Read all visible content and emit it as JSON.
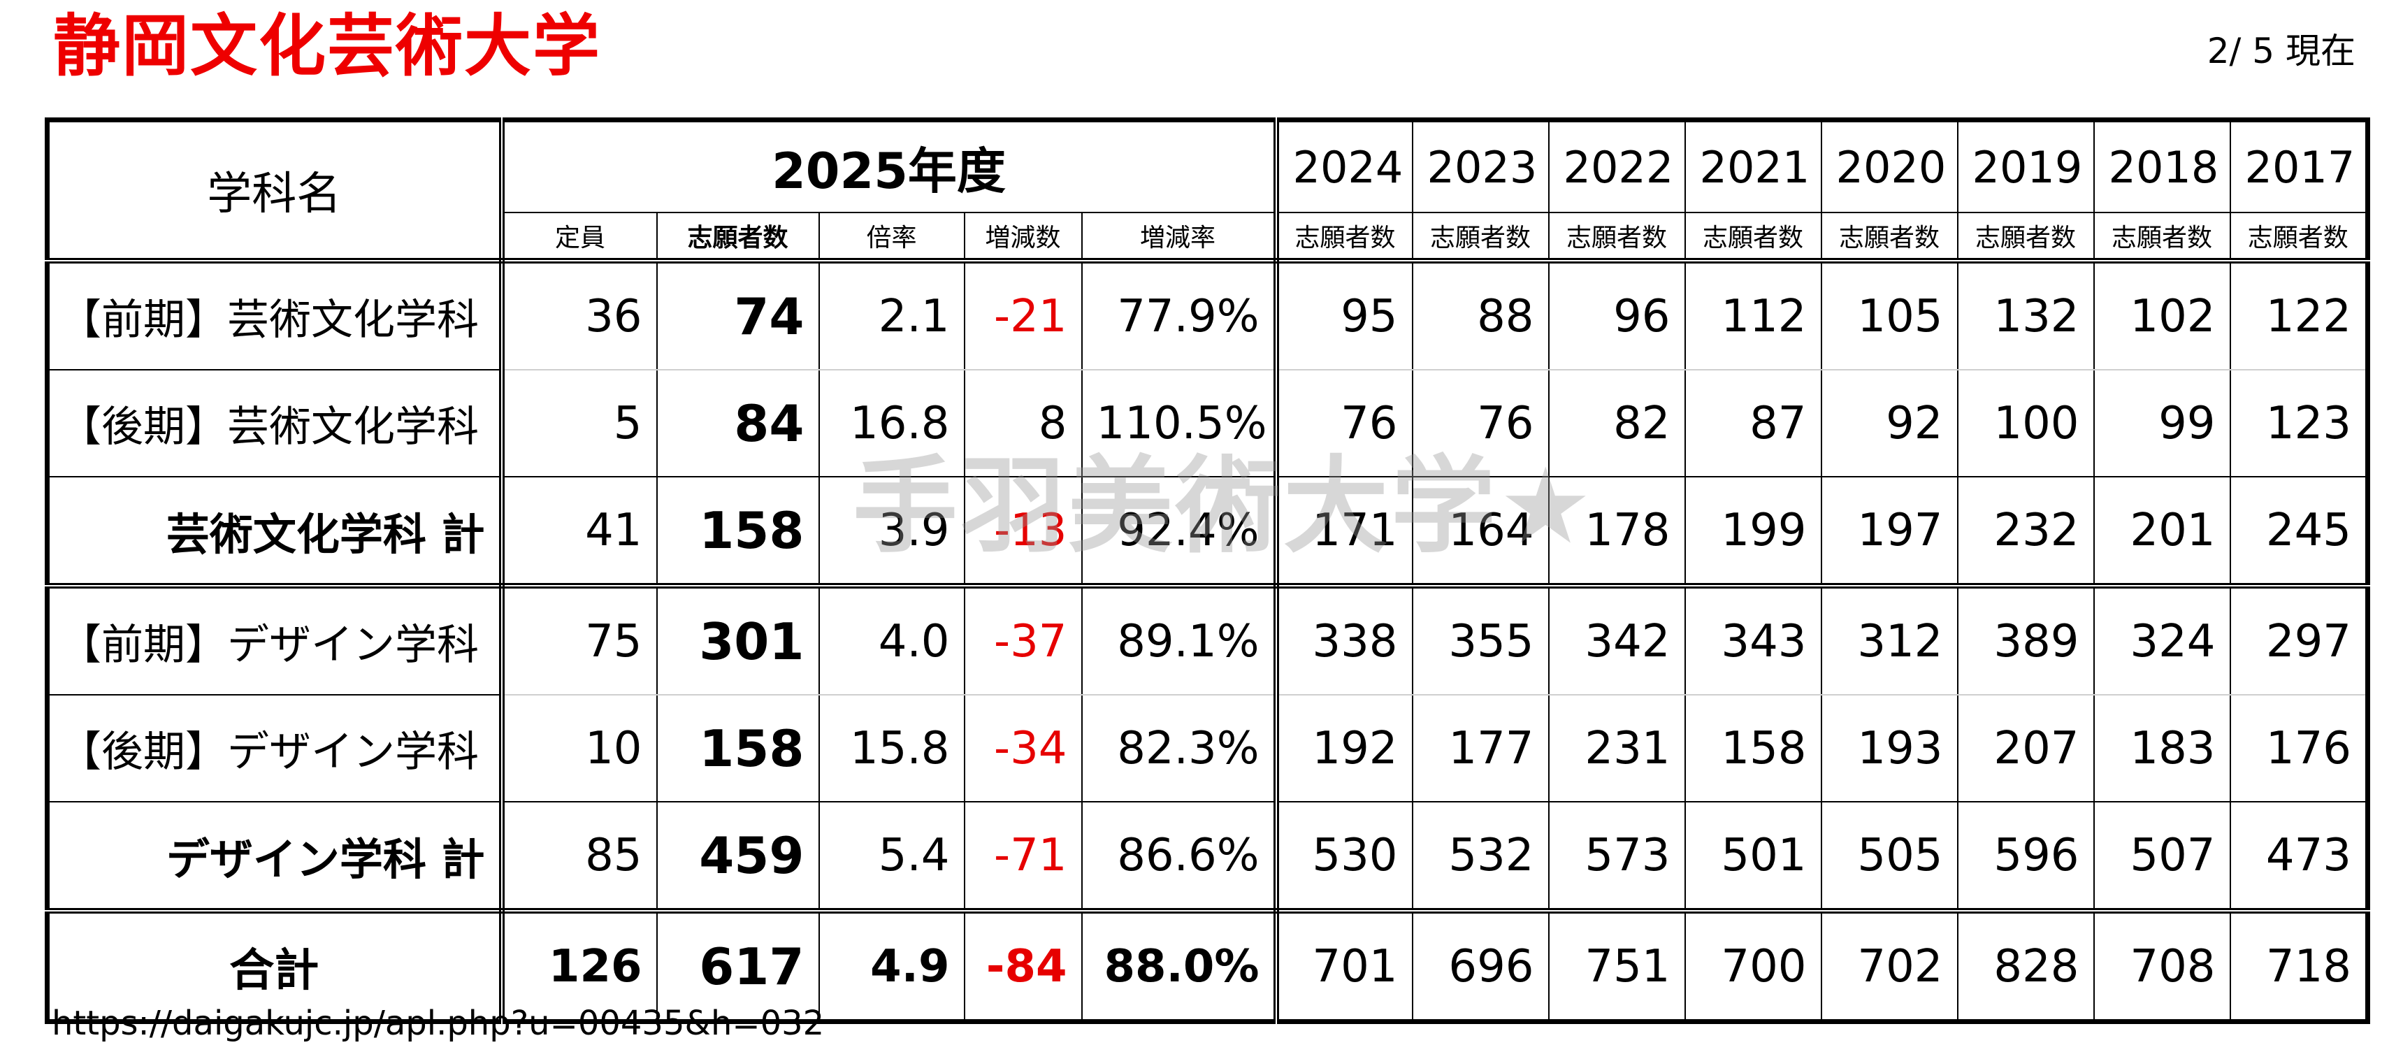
{
  "title": "静岡文化芸術大学",
  "as_of": "2/ 5 現在",
  "watermark": "手羽美術大学★",
  "footer_url": "https://daigakujc.jp/apl.php?u=00435&h=032",
  "header": {
    "dept_label": "学科名",
    "current_year": "2025年度",
    "sub_labels": [
      "定員",
      "志願者数",
      "倍率",
      "増減数",
      "増減率"
    ],
    "years": [
      "2024",
      "2023",
      "2022",
      "2021",
      "2020",
      "2019",
      "2018",
      "2017"
    ],
    "year_sub": "志願者数"
  },
  "rows": [
    {
      "name": "【前期】芸術文化学科",
      "quota": "36",
      "applicants": "74",
      "ratio": "2.1",
      "change": "-21",
      "rate": "77.9%",
      "history": [
        "95",
        "88",
        "96",
        "112",
        "105",
        "132",
        "102",
        "122"
      ]
    },
    {
      "name": "【後期】芸術文化学科",
      "quota": "5",
      "applicants": "84",
      "ratio": "16.8",
      "change": "8",
      "rate": "110.5%",
      "history": [
        "76",
        "76",
        "82",
        "87",
        "92",
        "100",
        "99",
        "123"
      ]
    },
    {
      "name": "芸術文化学科 計",
      "quota": "41",
      "applicants": "158",
      "ratio": "3.9",
      "change": "-13",
      "rate": "92.4%",
      "history": [
        "171",
        "164",
        "178",
        "199",
        "197",
        "232",
        "201",
        "245"
      ]
    },
    {
      "name": "【前期】デザイン学科",
      "quota": "75",
      "applicants": "301",
      "ratio": "4.0",
      "change": "-37",
      "rate": "89.1%",
      "history": [
        "338",
        "355",
        "342",
        "343",
        "312",
        "389",
        "324",
        "297"
      ]
    },
    {
      "name": "【後期】デザイン学科",
      "quota": "10",
      "applicants": "158",
      "ratio": "15.8",
      "change": "-34",
      "rate": "82.3%",
      "history": [
        "192",
        "177",
        "231",
        "158",
        "193",
        "207",
        "183",
        "176"
      ]
    },
    {
      "name": "デザイン学科 計",
      "quota": "85",
      "applicants": "459",
      "ratio": "5.4",
      "change": "-71",
      "rate": "86.6%",
      "history": [
        "530",
        "532",
        "573",
        "501",
        "505",
        "596",
        "507",
        "473"
      ]
    },
    {
      "name": "合計",
      "quota": "126",
      "applicants": "617",
      "ratio": "4.9",
      "change": "-84",
      "rate": "88.0%",
      "history": [
        "701",
        "696",
        "751",
        "700",
        "702",
        "828",
        "708",
        "718"
      ]
    }
  ],
  "colors": {
    "title": "#ee0000",
    "negative": "#e60000"
  }
}
